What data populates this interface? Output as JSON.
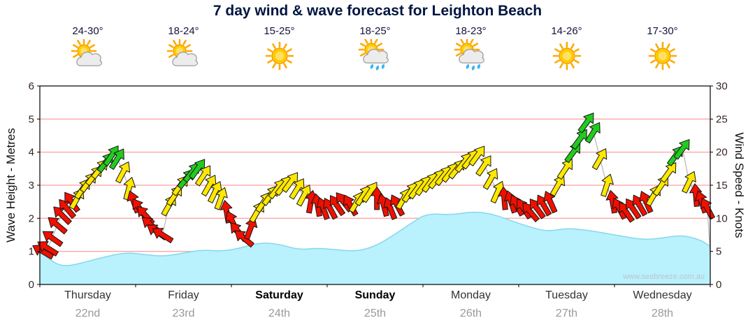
{
  "title": "7 day wind & wave forecast for Leighton Beach",
  "watermark": "www.seabreeze.com.au",
  "axes": {
    "left_title": "Wave Height - Metres",
    "right_title": "Wind Speed - Knots",
    "left_ticks": [
      0,
      1,
      2,
      3,
      4,
      5,
      6
    ],
    "right_ticks": [
      0,
      5,
      10,
      15,
      20,
      25,
      30
    ]
  },
  "days": [
    {
      "name": "Thursday",
      "date": "22nd",
      "temp": "24-30°",
      "icon": "partly_cloudy",
      "bold": false
    },
    {
      "name": "Friday",
      "date": "23rd",
      "temp": "18-24°",
      "icon": "partly_cloudy",
      "bold": false
    },
    {
      "name": "Saturday",
      "date": "24th",
      "temp": "15-25°",
      "icon": "sunny",
      "bold": true
    },
    {
      "name": "Sunday",
      "date": "25th",
      "temp": "18-25°",
      "icon": "showers",
      "bold": true
    },
    {
      "name": "Monday",
      "date": "26th",
      "temp": "18-23°",
      "icon": "showers",
      "bold": false
    },
    {
      "name": "Tuesday",
      "date": "27th",
      "temp": "14-26°",
      "icon": "sunny",
      "bold": false
    },
    {
      "name": "Wednesday",
      "date": "28th",
      "temp": "17-30°",
      "icon": "sunny",
      "bold": false
    }
  ],
  "colors": {
    "red": "#f01000",
    "yellow": "#ffe800",
    "green": "#22cb1e",
    "grid": "#ff8585",
    "wave_fill": "#b9f1fd",
    "wave_edge": "#85d9ea",
    "line": "#b5b5b5",
    "tick": "#3a2424",
    "border": "#000000",
    "watermark": "#bfc5c9"
  },
  "chart_data": {
    "type": "line",
    "title": "7 day wind & wave forecast for Leighton Beach",
    "x_axis": {
      "unit": "day_fraction",
      "range": [
        0,
        7
      ],
      "grid": false
    },
    "y_left": {
      "label": "Wave Height - Metres",
      "range": [
        0,
        6
      ],
      "ticks": [
        0,
        1,
        2,
        3,
        4,
        5,
        6
      ]
    },
    "y_right": {
      "label": "Wind Speed - Knots",
      "range": [
        0,
        30
      ],
      "ticks": [
        0,
        5,
        10,
        15,
        20,
        25,
        30
      ]
    },
    "arrow_format": [
      "time_days",
      "wind_speed_knots",
      "arrow_rotation_deg",
      "color_code"
    ],
    "color_codes": {
      "r": "red",
      "y": "yellow",
      "g": "green"
    },
    "wind_arrows": [
      [
        0.03,
        5,
        -150,
        "r"
      ],
      [
        0.08,
        5.5,
        -148,
        "r"
      ],
      [
        0.13,
        7,
        -145,
        "r"
      ],
      [
        0.18,
        9,
        -140,
        "r"
      ],
      [
        0.23,
        10.5,
        -135,
        "r"
      ],
      [
        0.28,
        11.5,
        -130,
        "r"
      ],
      [
        0.33,
        12.5,
        -125,
        "r"
      ],
      [
        0.39,
        13,
        -60,
        "y"
      ],
      [
        0.45,
        14.5,
        -56,
        "y"
      ],
      [
        0.51,
        15.5,
        -54,
        "y"
      ],
      [
        0.57,
        16.5,
        -52,
        "y"
      ],
      [
        0.63,
        17.5,
        -52,
        "y"
      ],
      [
        0.69,
        18.5,
        -54,
        "g"
      ],
      [
        0.75,
        19.5,
        -56,
        "g"
      ],
      [
        0.81,
        19,
        -58,
        "g"
      ],
      [
        0.87,
        17,
        -62,
        "y"
      ],
      [
        0.93,
        14.5,
        -75,
        "y"
      ],
      [
        0.98,
        12.5,
        -110,
        "r"
      ],
      [
        1.04,
        11.5,
        -125,
        "r"
      ],
      [
        1.1,
        10.5,
        -132,
        "r"
      ],
      [
        1.16,
        9,
        -140,
        "r"
      ],
      [
        1.22,
        8,
        -145,
        "r"
      ],
      [
        1.28,
        7.5,
        -148,
        "r"
      ],
      [
        1.35,
        12,
        -60,
        "y"
      ],
      [
        1.41,
        13.5,
        -56,
        "y"
      ],
      [
        1.47,
        15,
        -54,
        "y"
      ],
      [
        1.53,
        16,
        -52,
        "g"
      ],
      [
        1.59,
        17,
        -52,
        "g"
      ],
      [
        1.65,
        17.5,
        -54,
        "g"
      ],
      [
        1.71,
        16.5,
        -56,
        "y"
      ],
      [
        1.77,
        15,
        -60,
        "y"
      ],
      [
        1.83,
        14,
        -64,
        "y"
      ],
      [
        1.89,
        13,
        -70,
        "y"
      ],
      [
        1.95,
        11,
        -100,
        "r"
      ],
      [
        2.01,
        9.5,
        -115,
        "r"
      ],
      [
        2.07,
        8,
        -130,
        "r"
      ],
      [
        2.13,
        7,
        -140,
        "r"
      ],
      [
        2.2,
        8.5,
        -70,
        "r"
      ],
      [
        2.27,
        11,
        -60,
        "y"
      ],
      [
        2.34,
        12.5,
        -56,
        "y"
      ],
      [
        2.41,
        13.5,
        -54,
        "y"
      ],
      [
        2.48,
        14.5,
        -52,
        "y"
      ],
      [
        2.55,
        15,
        -52,
        "y"
      ],
      [
        2.62,
        15.5,
        -54,
        "y"
      ],
      [
        2.69,
        14.5,
        -58,
        "y"
      ],
      [
        2.76,
        13.5,
        -62,
        "y"
      ],
      [
        2.83,
        12.5,
        -80,
        "r"
      ],
      [
        2.9,
        12,
        -100,
        "r"
      ],
      [
        2.96,
        11.5,
        -110,
        "r"
      ],
      [
        3.03,
        11.5,
        -118,
        "r"
      ],
      [
        3.1,
        12,
        -124,
        "r"
      ],
      [
        3.17,
        12.5,
        -128,
        "r"
      ],
      [
        3.24,
        12,
        -120,
        "r"
      ],
      [
        3.31,
        12.5,
        -60,
        "y"
      ],
      [
        3.38,
        13.5,
        -56,
        "y"
      ],
      [
        3.45,
        14,
        -56,
        "y"
      ],
      [
        3.52,
        13,
        -90,
        "r"
      ],
      [
        3.59,
        12,
        -105,
        "r"
      ],
      [
        3.66,
        11.5,
        -112,
        "r"
      ],
      [
        3.73,
        12,
        -118,
        "r"
      ],
      [
        3.8,
        13,
        -60,
        "y"
      ],
      [
        3.87,
        14,
        -56,
        "y"
      ],
      [
        3.94,
        14.5,
        -54,
        "y"
      ],
      [
        4.01,
        15,
        -54,
        "y"
      ],
      [
        4.08,
        15.5,
        -54,
        "y"
      ],
      [
        4.15,
        16,
        -52,
        "y"
      ],
      [
        4.22,
        16.5,
        -52,
        "y"
      ],
      [
        4.29,
        17,
        -52,
        "y"
      ],
      [
        4.36,
        17.5,
        -52,
        "y"
      ],
      [
        4.43,
        18.5,
        -52,
        "y"
      ],
      [
        4.5,
        19,
        -52,
        "y"
      ],
      [
        4.57,
        19.5,
        -54,
        "y"
      ],
      [
        4.64,
        18,
        -56,
        "y"
      ],
      [
        4.71,
        16,
        -60,
        "y"
      ],
      [
        4.78,
        14,
        -66,
        "y"
      ],
      [
        4.85,
        13,
        -95,
        "r"
      ],
      [
        4.92,
        12.5,
        -108,
        "r"
      ],
      [
        4.98,
        12,
        -118,
        "r"
      ],
      [
        5.05,
        11.5,
        -124,
        "r"
      ],
      [
        5.12,
        11,
        -130,
        "r"
      ],
      [
        5.19,
        11.5,
        -126,
        "r"
      ],
      [
        5.26,
        12,
        -120,
        "r"
      ],
      [
        5.33,
        12.5,
        -114,
        "r"
      ],
      [
        5.41,
        15,
        -60,
        "y"
      ],
      [
        5.49,
        17.5,
        -56,
        "y"
      ],
      [
        5.57,
        20,
        -54,
        "g"
      ],
      [
        5.64,
        22,
        -54,
        "g"
      ],
      [
        5.71,
        24.5,
        -54,
        "g"
      ],
      [
        5.78,
        23,
        -58,
        "g"
      ],
      [
        5.85,
        19,
        -60,
        "y"
      ],
      [
        5.92,
        15,
        -72,
        "y"
      ],
      [
        5.98,
        12.5,
        -100,
        "r"
      ],
      [
        6.05,
        11.5,
        -118,
        "r"
      ],
      [
        6.12,
        11,
        -124,
        "r"
      ],
      [
        6.19,
        11.5,
        -124,
        "r"
      ],
      [
        6.26,
        12,
        -120,
        "r"
      ],
      [
        6.33,
        12.5,
        -114,
        "r"
      ],
      [
        6.41,
        13.5,
        -60,
        "y"
      ],
      [
        6.49,
        15,
        -56,
        "y"
      ],
      [
        6.57,
        17,
        -54,
        "y"
      ],
      [
        6.64,
        19.5,
        -54,
        "g"
      ],
      [
        6.71,
        20.5,
        -54,
        "g"
      ],
      [
        6.78,
        15.5,
        -64,
        "y"
      ],
      [
        6.85,
        13.5,
        -95,
        "r"
      ],
      [
        6.91,
        12.5,
        -108,
        "r"
      ],
      [
        6.97,
        11.5,
        -118,
        "r"
      ]
    ],
    "wind_line_end": [
      7,
      4.5
    ],
    "wave_format": [
      "time_days",
      "wave_height_m"
    ],
    "wave_height": [
      [
        0,
        1.0
      ],
      [
        0.15,
        0.62
      ],
      [
        0.3,
        0.55
      ],
      [
        0.5,
        0.7
      ],
      [
        0.7,
        0.85
      ],
      [
        0.9,
        0.97
      ],
      [
        1.1,
        0.9
      ],
      [
        1.3,
        0.85
      ],
      [
        1.5,
        0.95
      ],
      [
        1.7,
        1.05
      ],
      [
        1.9,
        1.0
      ],
      [
        2.1,
        1.1
      ],
      [
        2.3,
        1.27
      ],
      [
        2.5,
        1.22
      ],
      [
        2.7,
        1.05
      ],
      [
        2.9,
        1.1
      ],
      [
        3.1,
        1.05
      ],
      [
        3.3,
        1.0
      ],
      [
        3.5,
        1.15
      ],
      [
        3.7,
        1.5
      ],
      [
        3.9,
        1.9
      ],
      [
        4.05,
        2.15
      ],
      [
        4.3,
        2.1
      ],
      [
        4.5,
        2.2
      ],
      [
        4.7,
        2.15
      ],
      [
        4.9,
        1.95
      ],
      [
        5.1,
        1.75
      ],
      [
        5.3,
        1.6
      ],
      [
        5.5,
        1.7
      ],
      [
        5.7,
        1.65
      ],
      [
        5.9,
        1.55
      ],
      [
        6.1,
        1.45
      ],
      [
        6.3,
        1.35
      ],
      [
        6.5,
        1.4
      ],
      [
        6.7,
        1.5
      ],
      [
        6.9,
        1.35
      ],
      [
        7,
        1.15
      ]
    ]
  }
}
